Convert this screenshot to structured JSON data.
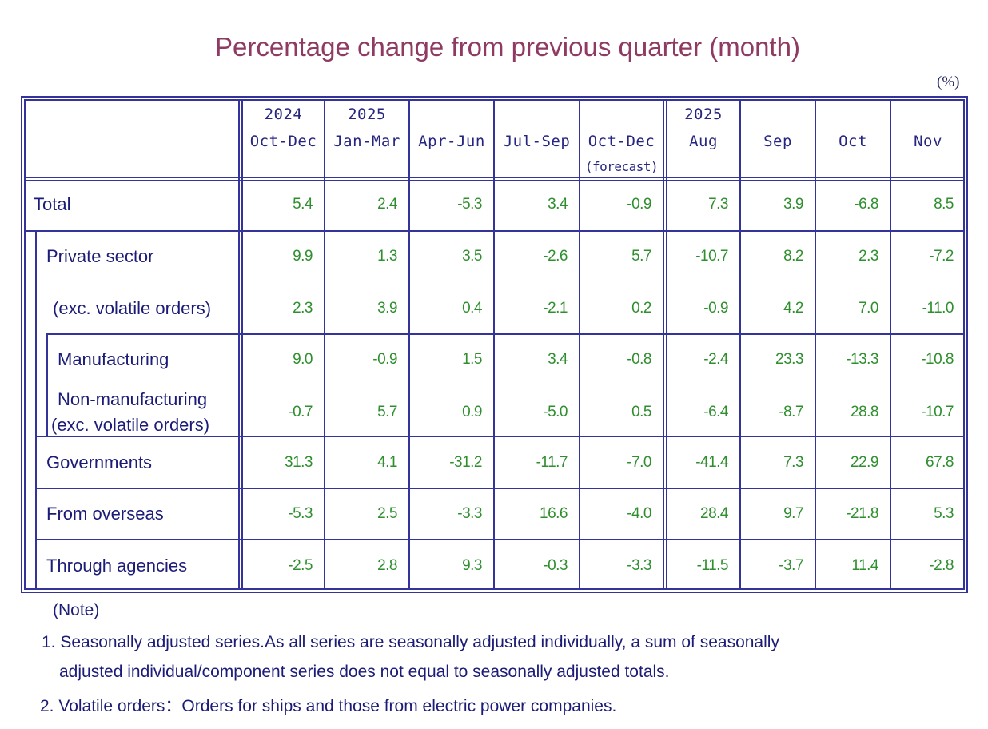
{
  "title": "Percentage change from previous quarter (month)",
  "unit": "(%)",
  "columns": [
    {
      "year": "2024",
      "period": "Oct-Dec",
      "sub": ""
    },
    {
      "year": "2025",
      "period": "Jan-Mar",
      "sub": ""
    },
    {
      "year": "",
      "period": "Apr-Jun",
      "sub": ""
    },
    {
      "year": "",
      "period": "Jul-Sep",
      "sub": ""
    },
    {
      "year": "",
      "period": "Oct-Dec",
      "sub": "(forecast)"
    },
    {
      "year": "2025",
      "period": "Aug",
      "sub": ""
    },
    {
      "year": "",
      "period": "Sep",
      "sub": ""
    },
    {
      "year": "",
      "period": "Oct",
      "sub": ""
    },
    {
      "year": "",
      "period": "Nov",
      "sub": ""
    }
  ],
  "rows": [
    {
      "label": "Total",
      "label2": "",
      "values": [
        "5.4",
        "2.4",
        "-5.3",
        "3.4",
        "-0.9",
        "7.3",
        "3.9",
        "-6.8",
        "8.5"
      ]
    },
    {
      "label": "Private sector",
      "label2": "",
      "values": [
        "9.9",
        "1.3",
        "3.5",
        "-2.6",
        "5.7",
        "-10.7",
        "8.2",
        "2.3",
        "-7.2"
      ]
    },
    {
      "label": "(exc. volatile orders)",
      "label2": "",
      "values": [
        "2.3",
        "3.9",
        "0.4",
        "-2.1",
        "0.2",
        "-0.9",
        "4.2",
        "7.0",
        "-11.0"
      ]
    },
    {
      "label": "Manufacturing",
      "label2": "",
      "values": [
        "9.0",
        "-0.9",
        "1.5",
        "3.4",
        "-0.8",
        "-2.4",
        "23.3",
        "-13.3",
        "-10.8"
      ]
    },
    {
      "label": "Non-manufacturing",
      "label2": "(exc. volatile orders)",
      "values": [
        "-0.7",
        "5.7",
        "0.9",
        "-5.0",
        "0.5",
        "-6.4",
        "-8.7",
        "28.8",
        "-10.7"
      ]
    },
    {
      "label": "Governments",
      "label2": "",
      "values": [
        "31.3",
        "4.1",
        "-31.2",
        "-11.7",
        "-7.0",
        "-41.4",
        "7.3",
        "22.9",
        "67.8"
      ]
    },
    {
      "label": "From overseas",
      "label2": "",
      "values": [
        "-5.3",
        "2.5",
        "-3.3",
        "16.6",
        "-4.0",
        "28.4",
        "9.7",
        "-21.8",
        "5.3"
      ]
    },
    {
      "label": "Through agencies",
      "label2": "",
      "values": [
        "-2.5",
        "2.8",
        "9.3",
        "-0.3",
        "-3.3",
        "-11.5",
        "-3.7",
        "11.4",
        "-2.8"
      ]
    }
  ],
  "notes": {
    "heading": "(Note)",
    "note1_line1": "1. Seasonally adjusted series.As all series are seasonally adjusted individually,  a sum of seasonally",
    "note1_line2": "adjusted individual/component series does not equal to seasonally adjusted totals.",
    "note2": "2. Volatile orders：Orders for ships and those from electric power companies."
  },
  "colors": {
    "title": "#8e3a62",
    "border": "#33339a",
    "text": "#1c1c78",
    "values": "#2f8f2f"
  }
}
